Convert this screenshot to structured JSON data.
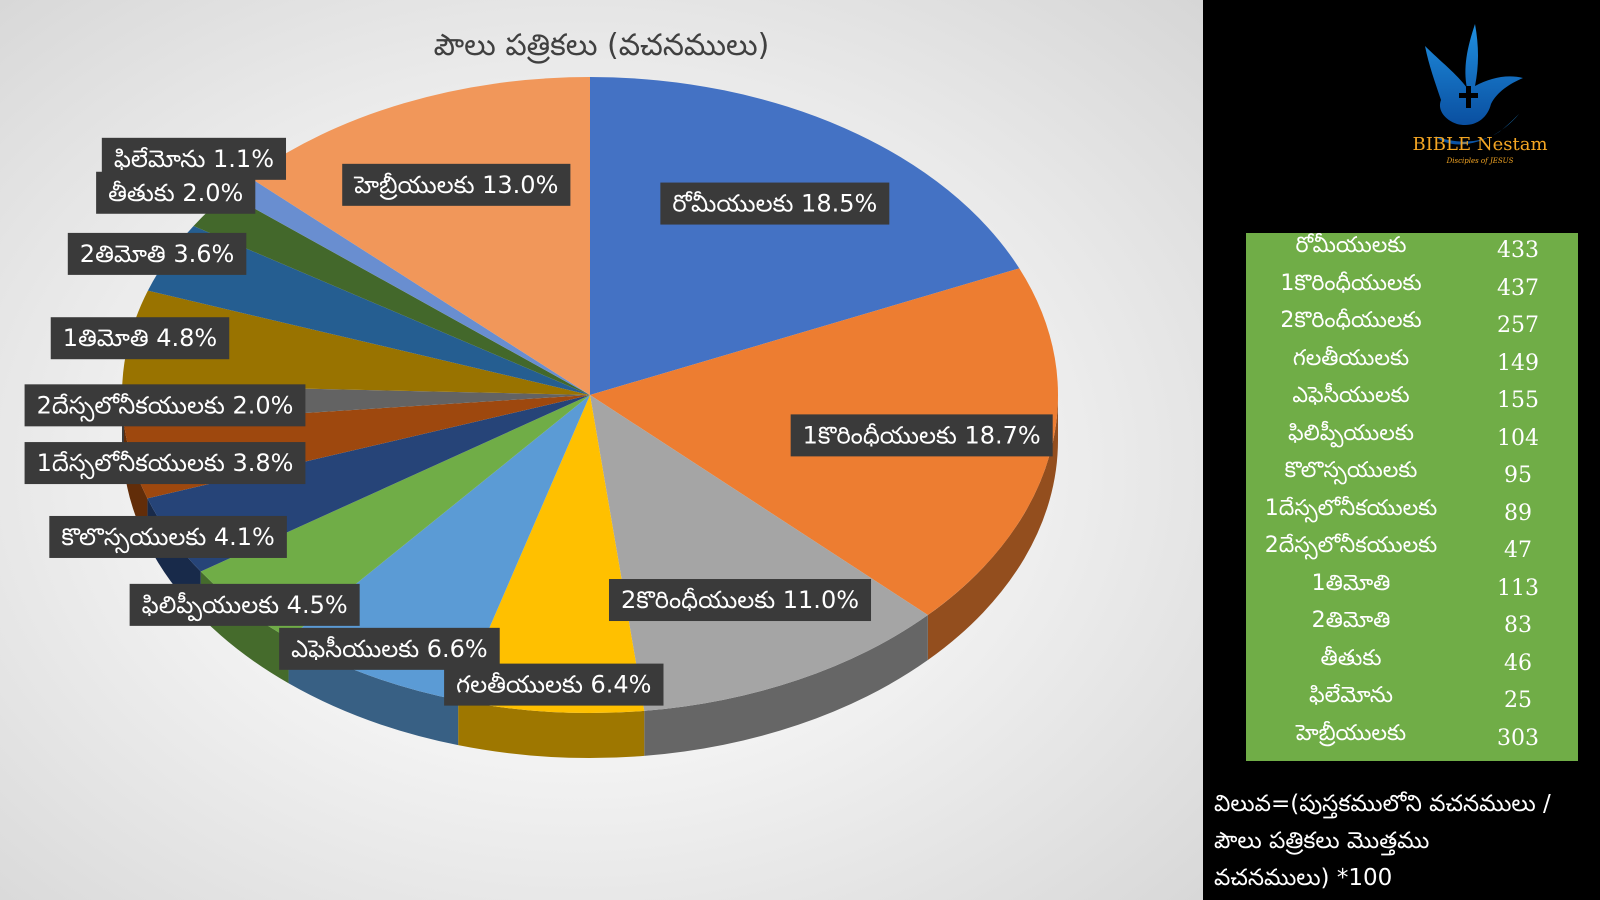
{
  "chart_data": {
    "type": "pie",
    "title": "పౌలు పత్రికలు (వచనములు)",
    "slices": [
      {
        "name": "రోమీయులకు",
        "label": "రోమీయులకు 18.5%",
        "percent": 18.5,
        "color": "#4472c4"
      },
      {
        "name": "1కొరింధీయులకు",
        "label": "1కొరింధీయులకు 18.7%",
        "percent": 18.7,
        "color": "#ed7d31"
      },
      {
        "name": "2కొరింధీయులకు",
        "label": "2కొరింధీయులకు 11.0%",
        "percent": 11.0,
        "color": "#a5a5a5"
      },
      {
        "name": "గలతీయులకు",
        "label": "గలతీయులకు 6.4%",
        "percent": 6.4,
        "color": "#ffc000"
      },
      {
        "name": "ఎఫెసీయులకు",
        "label": "ఎఫెసీయులకు 6.6%",
        "percent": 6.6,
        "color": "#5b9bd5"
      },
      {
        "name": "ఫిలిప్పీయులకు",
        "label": "ఫిలిప్పీయులకు 4.5%",
        "percent": 4.5,
        "color": "#70ad47"
      },
      {
        "name": "కొలొస్సయులకు",
        "label": "కొలొస్సయులకు 4.1%",
        "percent": 4.1,
        "color": "#264478"
      },
      {
        "name": "1దేస్సలోనీకయులకు",
        "label": "1దేస్సలోనీకయులకు 3.8%",
        "percent": 3.8,
        "color": "#9e480e"
      },
      {
        "name": "2దేస్సలోనీకయులకు",
        "label": "2దేస్సలోనీకయులకు 2.0%",
        "percent": 2.0,
        "color": "#636363"
      },
      {
        "name": "1తిమోతి",
        "label": "1తిమోతి 4.8%",
        "percent": 4.8,
        "color": "#997300"
      },
      {
        "name": "2తిమోతి",
        "label": "2తిమోతి 3.6%",
        "percent": 3.6,
        "color": "#255e91"
      },
      {
        "name": "తీతుకు",
        "label": "తీతుకు 2.0%",
        "percent": 2.0,
        "color": "#43682b"
      },
      {
        "name": "ఫిలేమోను",
        "label": "ఫిలేమోను 1.1%",
        "percent": 1.1,
        "color": "#698ed0"
      },
      {
        "name": "హెబ్రీయులకు",
        "label": "హెబ్రీయులకు 13.0%",
        "percent": 13.0,
        "color": "#f1975a"
      }
    ]
  },
  "logo": {
    "text": "BIBLE Nestam",
    "tagline": "Disciples of JESUS"
  },
  "values_table": {
    "rows": [
      {
        "name": "రోమీయులకు",
        "value": "433"
      },
      {
        "name": "1కొరింధీయులకు",
        "value": "437"
      },
      {
        "name": "2కొరింధీయులకు",
        "value": "257"
      },
      {
        "name": "గలతీయులకు",
        "value": "149"
      },
      {
        "name": "ఎఫెసీయులకు",
        "value": "155"
      },
      {
        "name": "ఫిలిప్పీయులకు",
        "value": "104"
      },
      {
        "name": "కొలొస్సయులకు",
        "value": "95"
      },
      {
        "name": "1దేస్సలోనీకయులకు",
        "value": "89"
      },
      {
        "name": "2దేస్సలోనీకయులకు",
        "value": "47"
      },
      {
        "name": "1తిమోతి",
        "value": "113"
      },
      {
        "name": "2తిమోతి",
        "value": "83"
      },
      {
        "name": "తీతుకు",
        "value": "46"
      },
      {
        "name": "ఫిలేమోను",
        "value": "25"
      },
      {
        "name": "హెబ్రీయులకు",
        "value": "303"
      }
    ]
  },
  "formula": {
    "lines": [
      "విలువ=(పుస్తకములోని వచనములు /",
      "పౌలు పత్రికలు మొత్తము",
      "వచనములు) *100"
    ]
  }
}
